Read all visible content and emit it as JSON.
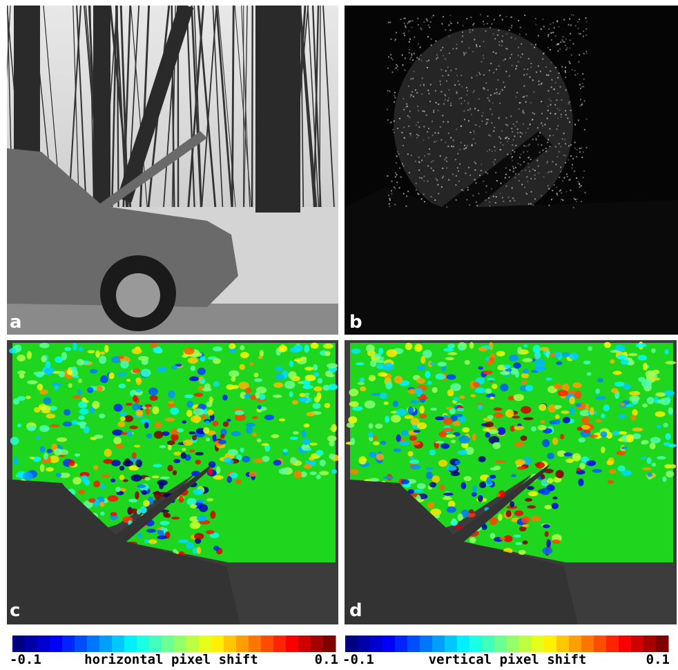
{
  "panels": [
    {
      "label": "a"
    },
    {
      "label": "b"
    },
    {
      "label": "c"
    },
    {
      "label": "d"
    }
  ],
  "colorbars": [
    {
      "min_label": "-0.1",
      "title": "horizontal pixel shift",
      "max_label": "0.1"
    },
    {
      "min_label": "-0.1",
      "title": "vertical pixel shift",
      "max_label": "0.1"
    }
  ]
}
